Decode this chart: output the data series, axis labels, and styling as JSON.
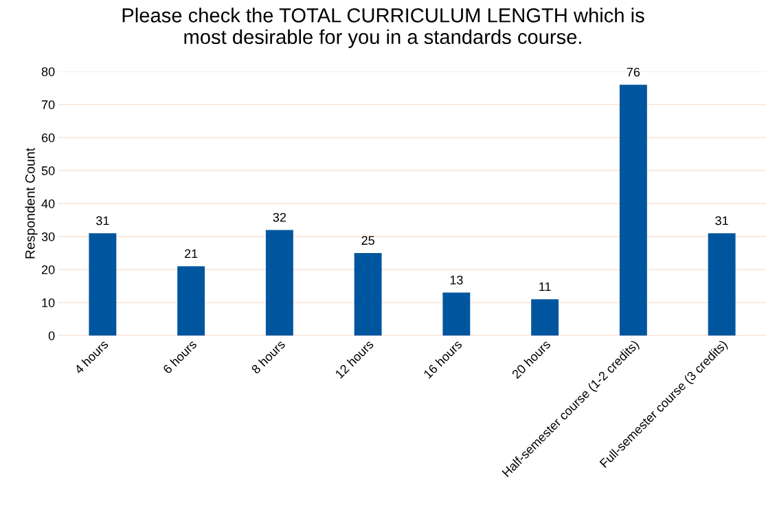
{
  "chart_data": {
    "type": "bar",
    "title": "Please check the TOTAL CURRICULUM LENGTH which is\nmost desirable for you in a standards course.",
    "ylabel": "Respondent Count",
    "categories": [
      "4 hours",
      "6 hours",
      "8 hours",
      "12 hours",
      "16 hours",
      "20 hours",
      "Half-semester course (1-2 credits)",
      "Full-semester course (3 credits)"
    ],
    "values": [
      31,
      21,
      32,
      25,
      13,
      11,
      76,
      31
    ],
    "color": "#00569e",
    "ylim": [
      0,
      80
    ],
    "yticks": [
      0,
      10,
      20,
      30,
      40,
      50,
      60,
      70,
      80
    ],
    "grid": "y",
    "data_labels": true
  }
}
